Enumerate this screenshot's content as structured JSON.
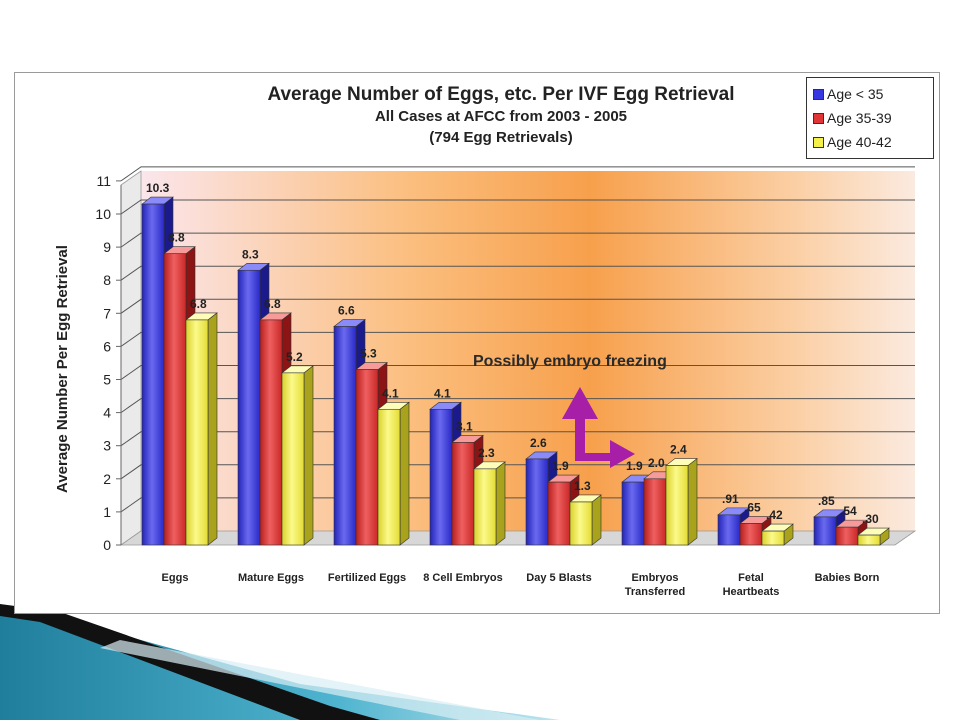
{
  "colors": {
    "series": [
      "#3838e0",
      "#e03535",
      "#f5f04a"
    ],
    "annotation_arrow": "#a61fa6"
  },
  "chart_data": {
    "type": "bar",
    "title": "Average Number of Eggs, etc. Per IVF Egg Retrieval",
    "subtitle": "All Cases at AFCC from 2003 - 2005",
    "subtitle2": "(794 Egg Retrievals)",
    "ylabel": "Average Number Per Egg Retrieval",
    "ylim": [
      0,
      11
    ],
    "yticks": [
      "0",
      "1",
      "2",
      "3",
      "4",
      "5",
      "6",
      "7",
      "8",
      "9",
      "10",
      "11"
    ],
    "grid": true,
    "legend_position": "top-right",
    "categories": [
      "Eggs",
      "Mature Eggs",
      "Fertilized Eggs",
      "8 Cell Embryos",
      "Day 5 Blasts",
      "Embryos Transferred",
      "Fetal Heartbeats",
      "Babies Born"
    ],
    "category_lines": [
      [
        "Eggs"
      ],
      [
        "Mature Eggs"
      ],
      [
        "Fertilized Eggs"
      ],
      [
        "8 Cell Embryos"
      ],
      [
        "Day 5 Blasts"
      ],
      [
        "Embryos",
        "Transferred"
      ],
      [
        "Fetal",
        "Heartbeats"
      ],
      [
        "Babies Born"
      ]
    ],
    "series": [
      {
        "name": "Age < 35",
        "values": [
          10.3,
          8.3,
          6.6,
          4.1,
          2.6,
          1.9,
          0.91,
          0.85
        ],
        "labels": [
          "10.3",
          "8.3",
          "6.6",
          "4.1",
          "2.6",
          "1.9",
          ".91",
          ".85"
        ]
      },
      {
        "name": "Age 35-39",
        "values": [
          8.8,
          6.8,
          5.3,
          3.1,
          1.9,
          2.0,
          0.65,
          0.54
        ],
        "labels": [
          "8.8",
          "6.8",
          "5.3",
          "3.1",
          "1.9",
          "2.0",
          ".65",
          ".54"
        ]
      },
      {
        "name": "Age 40-42",
        "values": [
          6.8,
          5.2,
          4.1,
          2.3,
          1.3,
          2.4,
          0.42,
          0.3
        ],
        "labels": [
          "6.8",
          "5.2",
          "4.1",
          "2.3",
          "1.3",
          "2.4",
          ".42",
          ".30"
        ]
      }
    ],
    "annotation": "Possibly embryo freezing"
  }
}
